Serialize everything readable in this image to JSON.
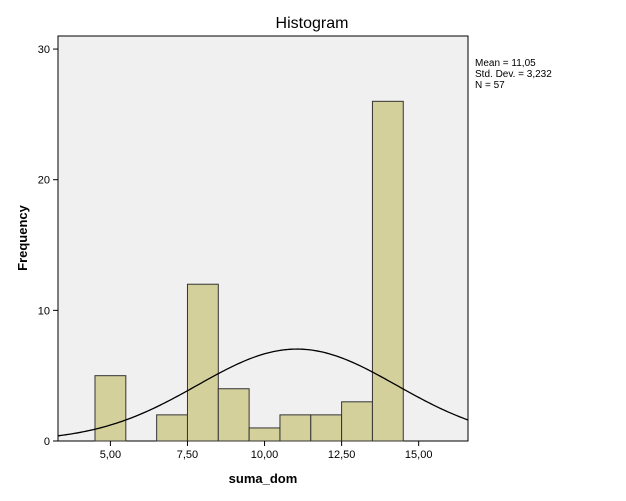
{
  "chart_data": {
    "type": "histogram",
    "title": "Histogram",
    "xlabel": "suma_dom",
    "ylabel": "Frequency",
    "xlim": [
      3.3,
      16.6
    ],
    "ylim": [
      0,
      31
    ],
    "x_ticks": [
      "5,00",
      "7,50",
      "10,00",
      "12,50",
      "15,00"
    ],
    "x_tick_values": [
      5,
      7.5,
      10,
      12.5,
      15
    ],
    "y_ticks": [
      "0",
      "10",
      "20",
      "30"
    ],
    "y_tick_values": [
      0,
      10,
      20,
      30
    ],
    "bins": [
      {
        "x0": 4.5,
        "x1": 5.5,
        "count": 5
      },
      {
        "x0": 6.5,
        "x1": 7.5,
        "count": 2
      },
      {
        "x0": 7.5,
        "x1": 8.5,
        "count": 12
      },
      {
        "x0": 8.5,
        "x1": 9.5,
        "count": 4
      },
      {
        "x0": 9.5,
        "x1": 10.5,
        "count": 1
      },
      {
        "x0": 10.5,
        "x1": 11.5,
        "count": 2
      },
      {
        "x0": 11.5,
        "x1": 12.5,
        "count": 2
      },
      {
        "x0": 12.5,
        "x1": 13.5,
        "count": 3
      },
      {
        "x0": 13.5,
        "x1": 14.5,
        "count": 26
      }
    ],
    "normal_curve": {
      "mean": 11.05,
      "sd": 3.232,
      "n": 57,
      "bin_width": 1
    },
    "stats": {
      "mean": "Mean = 11,05",
      "std_dev": "Std. Dev. = 3,232",
      "n": "N = 57"
    },
    "grid": false,
    "colors": {
      "bar_fill": "#d4d09b",
      "bar_stroke": "#333333",
      "plot_bg": "#f0f0f0",
      "curve": "#000000"
    }
  }
}
